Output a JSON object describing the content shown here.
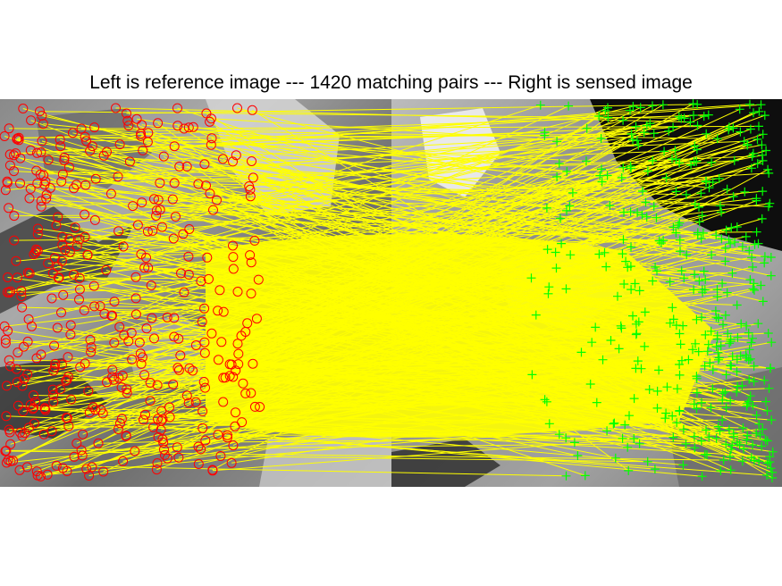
{
  "figure": {
    "title": "Left is reference image --- 1420 matching pairs --- Right is sensed image"
  },
  "colors": {
    "page_background": "#ffffff",
    "match_line": "#ffff00",
    "reference_marker": "#ff0000",
    "sensed_marker": "#00ff00"
  },
  "images": {
    "reference": "grayscale satellite image (reference)",
    "sensed": "grayscale satellite image (sensed)"
  },
  "markers": {
    "reference_marker": "circle-marker",
    "sensed_marker": "plus-marker"
  },
  "matching_pairs": 1420
}
